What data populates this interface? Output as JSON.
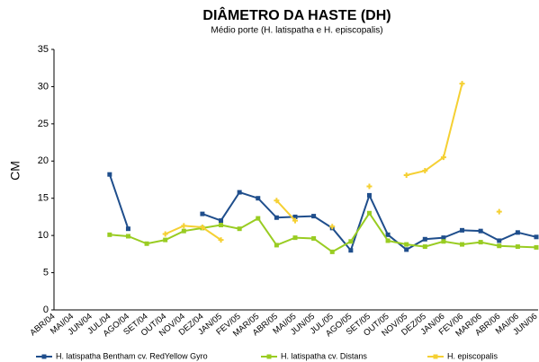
{
  "chart_data": {
    "type": "line",
    "title": "DIÂMETRO DA HASTE (DH)",
    "subtitle": "Médio porte (H. latispatha e H. episcopalis)",
    "y_label": "CM",
    "categories": [
      "ABR/04",
      "MAI/04",
      "JUN/04",
      "JUL/04",
      "AGO/04",
      "SET/04",
      "OUT/04",
      "NOV/04",
      "DEZ/04",
      "JAN/05",
      "FEV/05",
      "MAR/05",
      "ABR/05",
      "MAI/05",
      "JUN/05",
      "JUL/05",
      "AGO/05",
      "SET/05",
      "OUT/05",
      "NOV/05",
      "DEZ/05",
      "JAN/06",
      "FEV/06",
      "MAR/06",
      "ABR/06",
      "MAI/06",
      "JUN/06"
    ],
    "series": [
      {
        "name": "H. latispatha Bentham cv. RedYellow Gyro",
        "color": "#1f4e8c",
        "values": [
          null,
          null,
          null,
          18.2,
          10.9,
          null,
          null,
          null,
          12.9,
          12.0,
          15.8,
          15.0,
          12.4,
          12.5,
          12.6,
          11.0,
          8.0,
          15.4,
          10.1,
          8.1,
          9.5,
          9.7,
          10.7,
          10.6,
          9.3,
          10.4,
          9.8
        ]
      },
      {
        "name": "H. latispatha cv. Distans",
        "color": "#99cc22",
        "values": [
          null,
          null,
          null,
          10.1,
          9.9,
          8.9,
          9.4,
          10.6,
          11.0,
          11.4,
          10.9,
          12.3,
          8.7,
          9.7,
          9.6,
          7.8,
          9.2,
          13.0,
          9.3,
          8.8,
          8.5,
          9.2,
          8.8,
          9.1,
          8.6,
          8.5,
          8.4
        ]
      },
      {
        "name": "H. episcopalis",
        "color": "#f5d033",
        "values": [
          null,
          null,
          null,
          null,
          null,
          null,
          10.2,
          11.3,
          11.1,
          9.4,
          null,
          null,
          14.7,
          12.0,
          null,
          11.2,
          null,
          16.6,
          null,
          18.1,
          18.7,
          20.5,
          30.4,
          null,
          13.2,
          null,
          null
        ]
      }
    ],
    "ylim": [
      0,
      35
    ],
    "yticks": [
      0,
      5,
      10,
      15,
      20,
      25,
      30,
      35
    ],
    "grid": false,
    "legend": "bottom"
  }
}
